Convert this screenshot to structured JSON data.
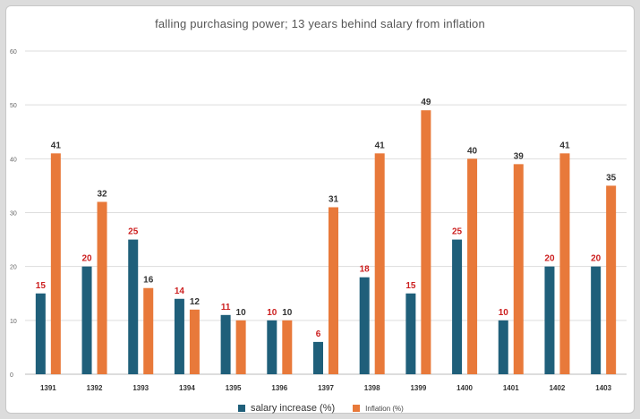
{
  "chart_data": {
    "type": "bar",
    "title": "falling purchasing power; 13 years behind salary from inflation",
    "xlabel": "",
    "ylabel": "",
    "ylim": [
      0,
      60
    ],
    "yticks": [
      0,
      10,
      20,
      30,
      40,
      50,
      60
    ],
    "grid": true,
    "legend_position": "bottom",
    "categories": [
      "1391",
      "1392",
      "1393",
      "1394",
      "1395",
      "1396",
      "1397",
      "1398",
      "1399",
      "1400",
      "1401",
      "1402",
      "1403"
    ],
    "series": [
      {
        "name": "salary increase (%)",
        "color": "#1f5f7a",
        "label_color": "#cc1f1f",
        "values": [
          15,
          20,
          25,
          14,
          11,
          10,
          6,
          18,
          15,
          25,
          10,
          20,
          20
        ]
      },
      {
        "name": "Inflation (%)",
        "color": "#e8793a",
        "label_color": "#333333",
        "values": [
          41,
          32,
          16,
          12,
          10,
          10,
          31,
          41,
          49,
          40,
          39,
          41,
          35
        ]
      }
    ]
  }
}
